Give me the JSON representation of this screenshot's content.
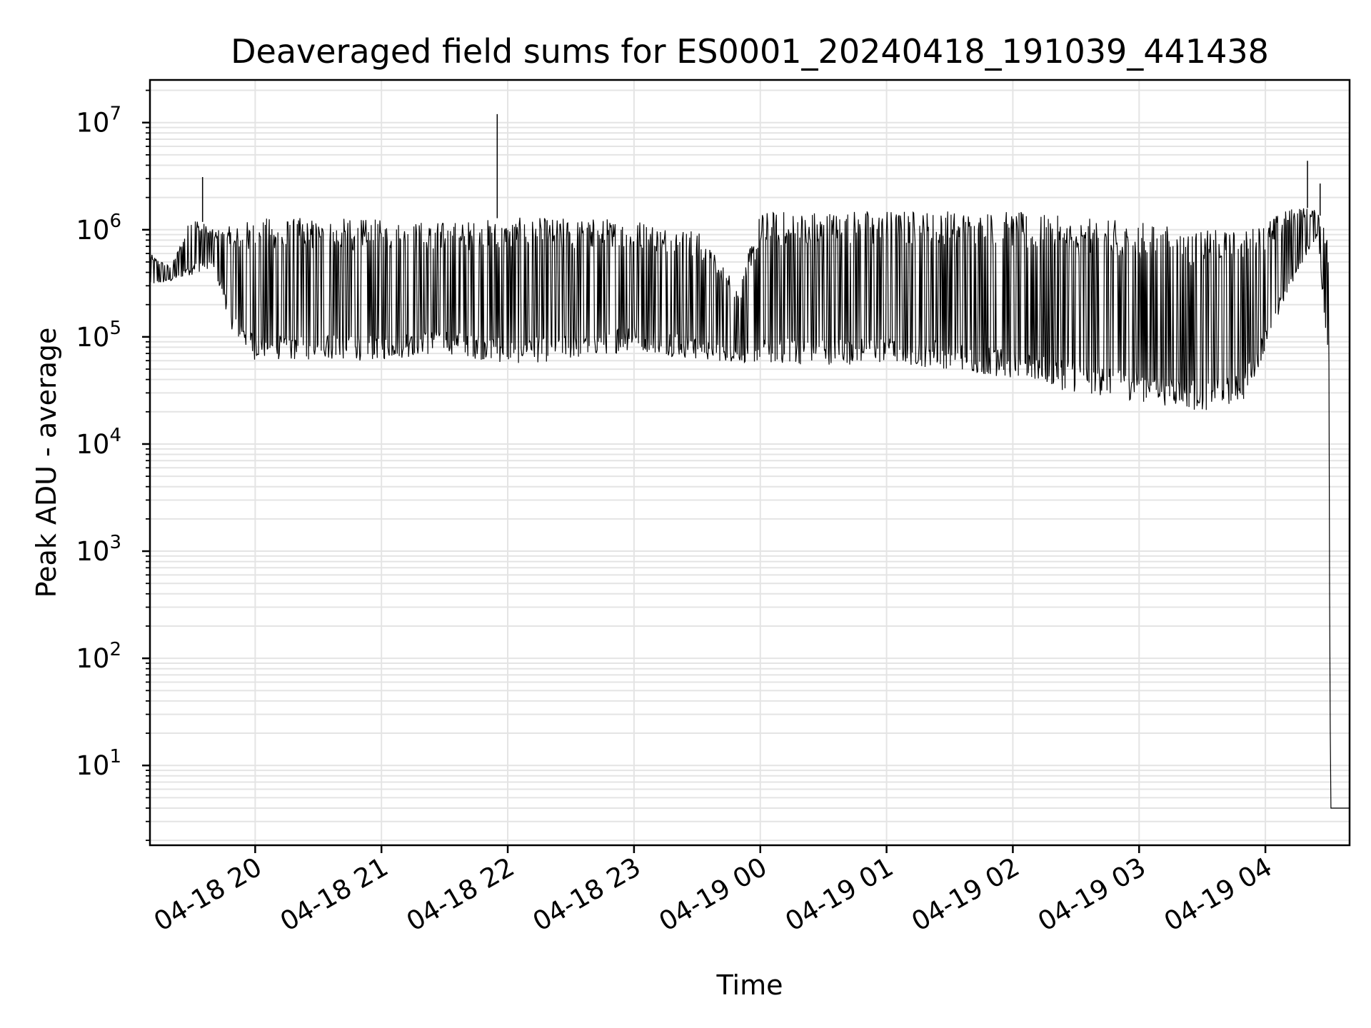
{
  "chart_data": {
    "type": "line",
    "title": "Deaveraged field sums for ES0001_20240418_191039_441438",
    "xlabel": "Time",
    "ylabel": "Peak ADU - average",
    "yscale": "log",
    "grid": true,
    "line_color": "#000000",
    "grid_color": "#e4e4e4",
    "xlim": [
      "2024-04-18 19:10",
      "2024-04-19 04:40"
    ],
    "ylim": [
      1.8,
      25000000
    ],
    "x_ticks": [
      {
        "value": "2024-04-18 20:00",
        "label": "04-18 20"
      },
      {
        "value": "2024-04-18 21:00",
        "label": "04-18 21"
      },
      {
        "value": "2024-04-18 22:00",
        "label": "04-18 22"
      },
      {
        "value": "2024-04-18 23:00",
        "label": "04-18 23"
      },
      {
        "value": "2024-04-19 00:00",
        "label": "04-19 00"
      },
      {
        "value": "2024-04-19 01:00",
        "label": "04-19 01"
      },
      {
        "value": "2024-04-19 02:00",
        "label": "04-19 02"
      },
      {
        "value": "2024-04-19 03:00",
        "label": "04-19 03"
      },
      {
        "value": "2024-04-19 04:00",
        "label": "04-19 04"
      }
    ],
    "y_ticks": [
      {
        "value": 10,
        "base": "10",
        "exp": "1"
      },
      {
        "value": 100,
        "base": "10",
        "exp": "2"
      },
      {
        "value": 1000,
        "base": "10",
        "exp": "3"
      },
      {
        "value": 10000,
        "base": "10",
        "exp": "4"
      },
      {
        "value": 100000,
        "base": "10",
        "exp": "5"
      },
      {
        "value": 1000000,
        "base": "10",
        "exp": "6"
      },
      {
        "value": 10000000,
        "base": "10",
        "exp": "7"
      }
    ],
    "series": [
      {
        "x": [
          "2024-04-18 19:10",
          "2024-04-18 19:20",
          "2024-04-18 19:30",
          "2024-04-18 19:40",
          "2024-04-18 19:50",
          "2024-04-18 20:00",
          "2024-04-18 20:10",
          "2024-04-18 20:30",
          "2024-04-18 21:00",
          "2024-04-18 21:30",
          "2024-04-18 22:00",
          "2024-04-18 22:30",
          "2024-04-18 23:00",
          "2024-04-18 23:30",
          "2024-04-18 23:50",
          "2024-04-19 00:00",
          "2024-04-19 00:30",
          "2024-04-19 01:00",
          "2024-04-19 01:30",
          "2024-04-19 02:00",
          "2024-04-19 02:30",
          "2024-04-19 03:00",
          "2024-04-19 03:30",
          "2024-04-19 03:50",
          "2024-04-19 04:15",
          "2024-04-19 04:25",
          "2024-04-19 04:30",
          "2024-04-19 04:31",
          "2024-04-19 04:40"
        ],
        "envelope_low": [
          300000,
          330000,
          380000,
          450000,
          100000,
          60000,
          60000,
          60000,
          60000,
          70000,
          55000,
          60000,
          75000,
          60000,
          58000,
          55000,
          55000,
          55000,
          50000,
          40000,
          30000,
          25000,
          20000,
          25000,
          400000,
          900000,
          40000,
          4,
          4
        ],
        "envelope_high": [
          600000,
          450000,
          1400000,
          1000000,
          1100000,
          1300000,
          1300000,
          1300000,
          1250000,
          1200000,
          1300000,
          1300000,
          1300000,
          1000000,
          300000,
          1500000,
          1550000,
          1550000,
          1550000,
          1500000,
          1300000,
          1200000,
          1000000,
          1000000,
          1700000,
          1500000,
          900000,
          4,
          4
        ],
        "spikes": [
          {
            "x": "2024-04-18 19:35",
            "y": 3100000
          },
          {
            "x": "2024-04-18 21:55",
            "y": 12000000
          },
          {
            "x": "2024-04-19 04:20",
            "y": 4400000
          },
          {
            "x": "2024-04-19 04:26",
            "y": 2700000
          }
        ]
      }
    ]
  }
}
